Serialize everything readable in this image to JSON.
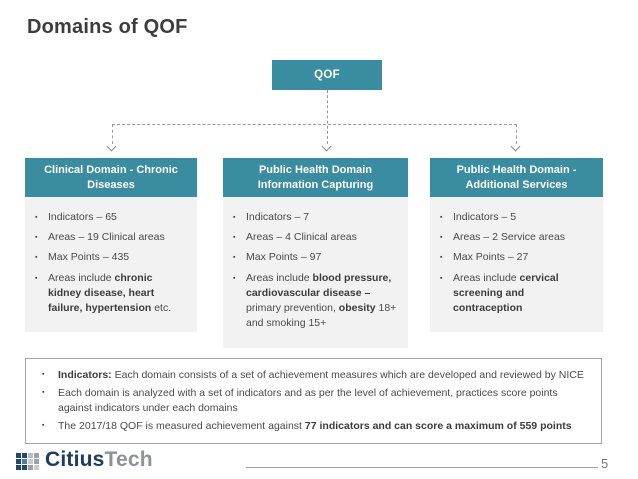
{
  "title": "Domains of QOF",
  "root": {
    "label": "QOF"
  },
  "cards": [
    {
      "header": "Clinical Domain - Chronic Diseases",
      "bullets": [
        {
          "segments": [
            {
              "text": "Indicators – 65",
              "bold": false
            }
          ]
        },
        {
          "segments": [
            {
              "text": "Areas – 19 Clinical areas",
              "bold": false
            }
          ]
        },
        {
          "segments": [
            {
              "text": "Max Points – 435",
              "bold": false
            }
          ]
        },
        {
          "segments": [
            {
              "text": "Areas include ",
              "bold": false
            },
            {
              "text": "chronic kidney disease, heart failure, hypertension",
              "bold": true
            },
            {
              "text": " etc.",
              "bold": false
            }
          ]
        }
      ]
    },
    {
      "header": "Public Health Domain Information Capturing",
      "bullets": [
        {
          "segments": [
            {
              "text": "Indicators – 7",
              "bold": false
            }
          ]
        },
        {
          "segments": [
            {
              "text": "Areas – 4 Clinical areas",
              "bold": false
            }
          ]
        },
        {
          "segments": [
            {
              "text": "Max Points – 97",
              "bold": false
            }
          ]
        },
        {
          "segments": [
            {
              "text": "Areas include ",
              "bold": false
            },
            {
              "text": "blood pressure, cardiovascular disease –",
              "bold": true
            },
            {
              "text": " primary prevention, ",
              "bold": false
            },
            {
              "text": "obesity",
              "bold": true
            },
            {
              "text": " 18+ and smoking 15+",
              "bold": false
            }
          ]
        }
      ]
    },
    {
      "header": "Public Health Domain - Additional Services",
      "bullets": [
        {
          "segments": [
            {
              "text": "Indicators – 5",
              "bold": false
            }
          ]
        },
        {
          "segments": [
            {
              "text": "Areas – 2 Service areas",
              "bold": false
            }
          ]
        },
        {
          "segments": [
            {
              "text": "Max Points – 27",
              "bold": false
            }
          ]
        },
        {
          "segments": [
            {
              "text": "Areas include ",
              "bold": false
            },
            {
              "text": "cervical screening and contraception",
              "bold": true
            }
          ]
        }
      ]
    }
  ],
  "notes": [
    {
      "segments": [
        {
          "text": "Indicators:",
          "bold": true
        },
        {
          "text": " Each domain consists of a set of achievement measures which are developed and reviewed by NICE",
          "bold": false
        }
      ]
    },
    {
      "segments": [
        {
          "text": "Each domain is analyzed with a set of indicators and as per the level of achievement, practices score points against indicators under each domains",
          "bold": false
        }
      ]
    },
    {
      "segments": [
        {
          "text": "The 2017/18 QOF is measured achievement against ",
          "bold": false
        },
        {
          "text": "77 indicators and can score a maximum of 559 points",
          "bold": true
        }
      ]
    }
  ],
  "footer": {
    "brand_primary": "Citius",
    "brand_secondary": "Tech",
    "page_number": "5"
  },
  "colors": {
    "accent_teal": "#3a8ca1",
    "card_body_gray": "#f2f2f2",
    "title_text": "#3d3d3d",
    "body_text": "#4a4a4a",
    "notes_border": "#a6a6a6",
    "connector_gray": "#9a9a9a",
    "brand_navy": "#1e3a66",
    "brand_gray": "#8f9399"
  },
  "logo_grid_cells": [
    "#24476f",
    "#24476f",
    "#b9bec4",
    "#9aa1a9",
    "#24476f",
    "#4f7dab",
    "#c8ccd1",
    "#9aa1a9",
    "#24476f",
    "#24476f",
    "#9aa1a9",
    "#c8ccd1"
  ]
}
